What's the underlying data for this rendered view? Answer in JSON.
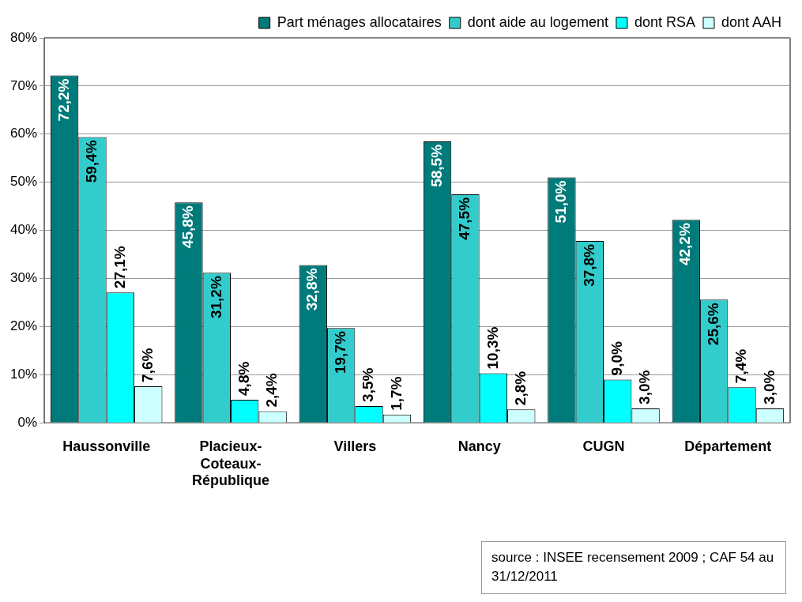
{
  "chart_data": {
    "type": "bar",
    "categories": [
      "Haussonville",
      "Placieux-Coteaux-République",
      "Villers",
      "Nancy",
      "CUGN",
      "Département"
    ],
    "series": [
      {
        "name": "Part ménages allocataires",
        "color": "#007b7b",
        "values": [
          72.2,
          45.8,
          32.8,
          58.5,
          51.0,
          42.2
        ],
        "value_labels": [
          "72,2%",
          "45,8%",
          "32,8%",
          "58,5%",
          "51,0%",
          "42,2%"
        ]
      },
      {
        "name": "dont aide au logement",
        "color": "#33cccc",
        "values": [
          59.4,
          31.2,
          19.7,
          47.5,
          37.8,
          25.6
        ],
        "value_labels": [
          "59,4%",
          "31,2%",
          "19,7%",
          "47,5%",
          "37,8%",
          "25,6%"
        ]
      },
      {
        "name": "dont RSA",
        "color": "#00ffff",
        "values": [
          27.1,
          4.8,
          3.5,
          10.3,
          9.0,
          7.4
        ],
        "value_labels": [
          "27,1%",
          "4,8%",
          "3,5%",
          "10,3%",
          "9,0%",
          "7,4%"
        ]
      },
      {
        "name": "dont AAH",
        "color": "#ccffff",
        "values": [
          7.6,
          2.4,
          1.7,
          2.8,
          3.0,
          3.0
        ],
        "value_labels": [
          "7,6%",
          "2,4%",
          "1,7%",
          "2,8%",
          "3,0%",
          "3,0%"
        ]
      }
    ],
    "ylim": [
      0,
      80
    ],
    "yticks": [
      {
        "value": 0,
        "label": "0%"
      },
      {
        "value": 10,
        "label": "10%"
      },
      {
        "value": 20,
        "label": "20%"
      },
      {
        "value": 30,
        "label": "30%"
      },
      {
        "value": 40,
        "label": "40%"
      },
      {
        "value": 50,
        "label": "50%"
      },
      {
        "value": 60,
        "label": "60%"
      },
      {
        "value": 70,
        "label": "70%"
      },
      {
        "value": 80,
        "label": "80%"
      }
    ],
    "grid": "y",
    "legend": "top right",
    "annotations": [
      "source : INSEE recensement 2009 ; CAF 54 au 31/12/2011"
    ]
  }
}
